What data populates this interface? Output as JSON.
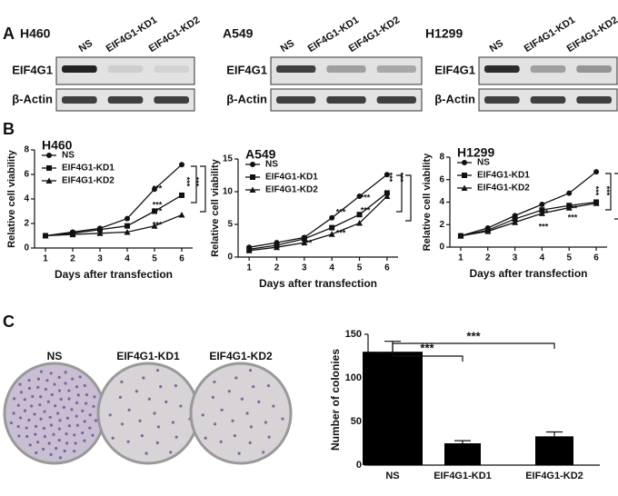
{
  "panel_a": {
    "label": "A",
    "blots": [
      {
        "cell_line": "H460",
        "lanes": [
          "NS",
          "EIF4G1-KD1",
          "EIF4G1-KD2"
        ],
        "rows": [
          "EIF4G1",
          "β-Actin"
        ]
      },
      {
        "cell_line": "A549",
        "lanes": [
          "NS",
          "EIF4G1-KD1",
          "EIF4G1-KD2"
        ],
        "rows": [
          "EIF4G1",
          "β-Actin"
        ]
      },
      {
        "cell_line": "H1299",
        "lanes": [
          "NS",
          "EIF4G1-KD1",
          "EIF4G1-KD2"
        ],
        "rows": [
          "EIF4G1",
          "β-Actin"
        ]
      }
    ]
  },
  "panel_b": {
    "label": "B"
  },
  "panel_c": {
    "label": "C",
    "plates": [
      "NS",
      "EIF4G1-KD1",
      "EIF4G1-KD2"
    ]
  },
  "chart_data": [
    {
      "type": "line",
      "title": "H460",
      "x_label": "Days after transfection",
      "y_label": "Relative cell viability",
      "x": [
        1,
        2,
        3,
        4,
        5,
        6
      ],
      "xlim": [
        0.6,
        6.4
      ],
      "xticks": [
        1,
        2,
        3,
        4,
        5,
        6
      ],
      "ylim": [
        0,
        8
      ],
      "yticks": [
        0,
        2,
        4,
        6,
        8
      ],
      "series": [
        {
          "name": "NS",
          "color": "#111111",
          "values": [
            1.0,
            1.3,
            1.6,
            2.4,
            4.8,
            6.8
          ]
        },
        {
          "name": "EIF4G1-KD1",
          "color": "#111111",
          "values": [
            1.0,
            1.2,
            1.5,
            1.8,
            3.0,
            4.3
          ]
        },
        {
          "name": "EIF4G1-KD2",
          "color": "#111111",
          "values": [
            1.0,
            1.1,
            1.2,
            1.3,
            1.8,
            2.7
          ]
        }
      ],
      "annotations": [
        "***",
        "***",
        "***",
        "***",
        "***",
        "***"
      ]
    },
    {
      "type": "line",
      "title": "A549",
      "x_label": "Days after transfection",
      "y_label": "Relative cell viability",
      "x": [
        1,
        2,
        3,
        4,
        5,
        6
      ],
      "xlim": [
        0.6,
        6.4
      ],
      "xticks": [
        1,
        2,
        3,
        4,
        5,
        6
      ],
      "ylim": [
        0,
        15
      ],
      "yticks": [
        0,
        5,
        10,
        15
      ],
      "series": [
        {
          "name": "NS",
          "color": "#111111",
          "values": [
            1.5,
            2.2,
            3.0,
            6.0,
            9.3,
            12.6
          ]
        },
        {
          "name": "EIF4G1-KD1",
          "color": "#111111",
          "values": [
            1.2,
            1.8,
            2.8,
            4.5,
            6.5,
            9.8
          ]
        },
        {
          "name": "EIF4G1-KD2",
          "color": "#111111",
          "values": [
            1.0,
            1.5,
            2.2,
            3.5,
            5.2,
            9.3
          ]
        }
      ],
      "annotations": [
        "***",
        "***",
        "***",
        "***",
        "***",
        "***",
        "***"
      ]
    },
    {
      "type": "line",
      "title": "H1299",
      "x_label": "Days after transfection",
      "y_label": "Relative cell viability",
      "x": [
        1,
        2,
        3,
        4,
        5,
        6
      ],
      "xlim": [
        0.6,
        6.4
      ],
      "xticks": [
        1,
        2,
        3,
        4,
        5,
        6
      ],
      "ylim": [
        0,
        8
      ],
      "yticks": [
        0,
        2,
        4,
        6,
        8
      ],
      "series": [
        {
          "name": "NS",
          "color": "#111111",
          "values": [
            1.0,
            1.7,
            2.8,
            3.8,
            4.8,
            6.7
          ]
        },
        {
          "name": "EIF4G1-KD1",
          "color": "#111111",
          "values": [
            1.0,
            1.5,
            2.5,
            3.3,
            3.7,
            4.0
          ]
        },
        {
          "name": "EIF4G1-KD2",
          "color": "#111111",
          "values": [
            1.0,
            1.4,
            2.2,
            3.0,
            3.5,
            3.9
          ]
        }
      ],
      "annotations": [
        "***",
        "***",
        "***",
        "***",
        "***",
        "***"
      ]
    },
    {
      "type": "bar",
      "y_label": "Number of colonies",
      "categories": [
        "NS",
        "EIF4G1-KD1",
        "EIF4G1-KD2"
      ],
      "values": [
        130,
        25,
        33
      ],
      "errors": [
        12,
        3,
        5
      ],
      "color": "#000000",
      "ylim": [
        0,
        150
      ],
      "yticks": [
        0,
        50,
        100,
        150
      ],
      "annotations": [
        "***",
        "***"
      ]
    }
  ]
}
